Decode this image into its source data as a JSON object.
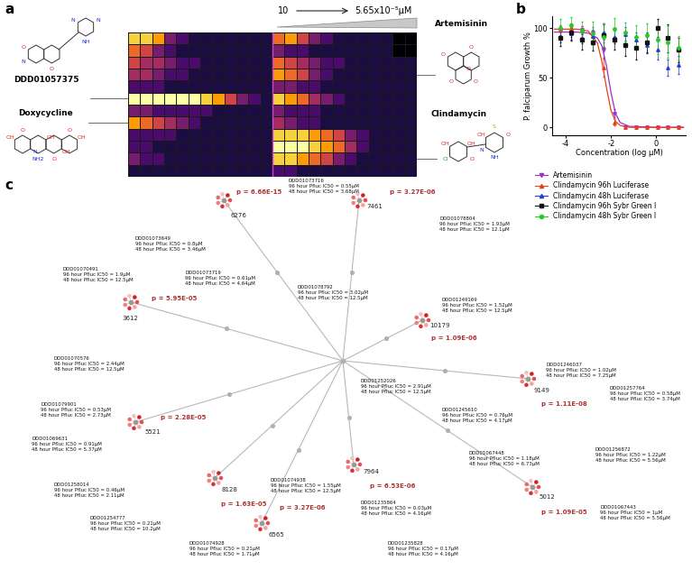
{
  "panel_a": {
    "label": "a",
    "concentration_start": "10",
    "concentration_end": "5.65x10⁻⁵μM",
    "cells": [
      [
        8,
        8,
        7,
        3,
        2,
        1,
        1,
        1,
        1,
        1,
        1,
        1,
        6,
        7,
        5,
        3,
        2,
        1,
        1,
        1,
        1,
        1,
        0,
        0
      ],
      [
        6,
        5,
        3,
        2,
        1,
        1,
        1,
        1,
        1,
        1,
        1,
        1,
        3,
        2,
        2,
        1,
        1,
        1,
        1,
        1,
        1,
        1,
        0,
        0
      ],
      [
        5,
        4,
        4,
        3,
        2,
        2,
        1,
        1,
        1,
        1,
        1,
        1,
        6,
        5,
        4,
        3,
        2,
        2,
        1,
        1,
        1,
        1,
        1,
        1
      ],
      [
        4,
        4,
        3,
        2,
        2,
        1,
        1,
        1,
        1,
        1,
        1,
        1,
        7,
        6,
        5,
        3,
        2,
        1,
        1,
        1,
        1,
        1,
        1,
        1
      ],
      [
        2,
        2,
        2,
        1,
        1,
        1,
        1,
        1,
        1,
        1,
        1,
        1,
        3,
        3,
        2,
        2,
        1,
        1,
        1,
        1,
        1,
        1,
        1,
        1
      ],
      [
        9,
        9,
        9,
        9,
        9,
        9,
        8,
        7,
        5,
        3,
        2,
        1,
        8,
        7,
        6,
        4,
        3,
        2,
        1,
        1,
        1,
        1,
        1,
        1
      ],
      [
        3,
        3,
        2,
        2,
        2,
        2,
        2,
        1,
        1,
        1,
        1,
        1,
        3,
        2,
        2,
        2,
        1,
        1,
        1,
        1,
        1,
        1,
        1,
        1
      ],
      [
        7,
        6,
        5,
        4,
        3,
        2,
        1,
        1,
        1,
        1,
        1,
        1,
        4,
        3,
        2,
        2,
        1,
        1,
        1,
        1,
        1,
        1,
        1,
        1
      ],
      [
        2,
        2,
        2,
        2,
        1,
        1,
        1,
        1,
        1,
        1,
        1,
        1,
        8,
        8,
        8,
        7,
        6,
        5,
        3,
        2,
        1,
        1,
        1,
        1
      ],
      [
        2,
        2,
        1,
        1,
        1,
        1,
        1,
        1,
        1,
        1,
        1,
        1,
        9,
        9,
        9,
        8,
        7,
        6,
        4,
        2,
        1,
        1,
        1,
        1
      ],
      [
        3,
        2,
        2,
        1,
        1,
        1,
        1,
        1,
        1,
        1,
        1,
        1,
        8,
        8,
        7,
        6,
        5,
        3,
        2,
        1,
        1,
        1,
        1,
        1
      ],
      [
        1,
        1,
        1,
        1,
        1,
        1,
        1,
        1,
        1,
        1,
        1,
        1,
        2,
        2,
        1,
        1,
        1,
        1,
        1,
        1,
        1,
        1,
        1,
        1
      ]
    ],
    "structures": [
      {
        "name": "DDD01057375",
        "row": 5,
        "atoms": [
          "N",
          "N",
          "NH",
          "O",
          "N",
          "O"
        ]
      },
      {
        "name": "Doxycycline",
        "row": 7,
        "atoms": [
          "OH",
          "O",
          "OH",
          "O",
          "OH",
          "OH",
          "O",
          "NH2",
          "N"
        ]
      },
      {
        "name": "Artemisinin",
        "row": 3,
        "atoms": [
          "O",
          "O",
          "O",
          "O",
          "O"
        ]
      },
      {
        "name": "Clindamycin",
        "row": 10,
        "atoms": [
          "OH",
          "OH",
          "OH",
          "S",
          "O",
          "N",
          "NH",
          "O",
          "Cl"
        ]
      }
    ]
  },
  "chart_data": {
    "type": "scatter",
    "label": "b",
    "xlabel": "Concentration (log μM)",
    "ylabel": "P. falciparum Growth %",
    "xlim": [
      -4.6,
      1.3
    ],
    "xticks": [
      -4,
      -2,
      0
    ],
    "ylim": [
      -8,
      112
    ],
    "yticks": [
      0,
      50,
      100
    ],
    "legend": "upper left",
    "x": [
      -4.25,
      -3.77,
      -3.29,
      -2.82,
      -2.34,
      -1.86,
      -1.39,
      -0.91,
      -0.43,
      0.05,
      0.52,
      1.0
    ],
    "series": [
      {
        "name": "Artemisinin",
        "color": "#9b30c8",
        "marker": "triangle_down",
        "values": [
          97,
          96,
          98,
          96,
          78,
          14,
          0,
          0,
          0,
          0,
          0,
          0
        ],
        "errors": [
          6,
          5,
          4,
          5,
          8,
          4,
          1,
          1,
          1,
          1,
          1,
          1
        ],
        "fit": {
          "x": [
            -4.5,
            -3.5,
            -3.0,
            -2.6,
            -2.4,
            -2.2,
            -2.0,
            -1.8,
            -1.6,
            -1.2,
            0,
            1.2
          ],
          "values": [
            96,
            96,
            95,
            90,
            82,
            62,
            35,
            14,
            5,
            1,
            0,
            0
          ]
        }
      },
      {
        "name": "Clindamycin 96h Luciferase",
        "color": "#e8401c",
        "marker": "triangle_up",
        "values": [
          99,
          100,
          98,
          92,
          60,
          5,
          0,
          0,
          0,
          0,
          0,
          0
        ],
        "errors": [
          3,
          3,
          4,
          5,
          9,
          3,
          1,
          1,
          1,
          1,
          1,
          1
        ],
        "fit": {
          "x": [
            -4.5,
            -3.5,
            -3.0,
            -2.6,
            -2.4,
            -2.2,
            -2.0,
            -1.8,
            -1.6,
            -1.2,
            0,
            1.2
          ],
          "values": [
            99,
            99,
            97,
            85,
            66,
            40,
            17,
            6,
            2,
            0,
            0,
            0
          ]
        }
      },
      {
        "name": "Clindamycin 48h Luciferase",
        "color": "#1f3fd6",
        "marker": "triangle_up",
        "values": [
          92,
          95,
          90,
          92,
          96,
          91,
          94,
          88,
          83,
          78,
          60,
          63
        ],
        "errors": [
          6,
          7,
          5,
          6,
          8,
          6,
          7,
          8,
          8,
          10,
          8,
          9
        ]
      },
      {
        "name": "Clindamycin 96h Sybr Green I",
        "color": "#111111",
        "marker": "square",
        "values": [
          90,
          96,
          88,
          86,
          93,
          88,
          83,
          80,
          86,
          100,
          90,
          78
        ],
        "errors": [
          8,
          9,
          10,
          9,
          12,
          10,
          11,
          12,
          10,
          9,
          14,
          12
        ]
      },
      {
        "name": "Clindamycin 48h Sybr Green I",
        "color": "#22cc22",
        "marker": "circle",
        "values": [
          100,
          103,
          97,
          95,
          91,
          99,
          96,
          91,
          93,
          88,
          86,
          80
        ],
        "errors": [
          9,
          8,
          10,
          12,
          14,
          11,
          10,
          12,
          12,
          14,
          16,
          12
        ]
      }
    ]
  },
  "panel_c": {
    "label": "c",
    "clusters": [
      {
        "id": "6276",
        "p": "p = 6.66E-15"
      },
      {
        "id": "7461",
        "p": "p = 3.27E-06"
      },
      {
        "id": "3612",
        "p": "p = 5.95E-05"
      },
      {
        "id": "10179",
        "p": "p = 1.09E-06"
      },
      {
        "id": "9149",
        "p": "p = 1.11E-08"
      },
      {
        "id": "5521",
        "p": "p = 2.28E-05"
      },
      {
        "id": "5012",
        "p": "p = 1.09E-05"
      },
      {
        "id": "8128",
        "p": "p = 1.63E-05"
      },
      {
        "id": "7964",
        "p": "p = 6.53E-06"
      },
      {
        "id": "6565",
        "p": "p = 3.27E-06"
      }
    ],
    "compounds": [
      {
        "id": "DDD01073716",
        "ic50_96h": "96 hour Pfluc IC50 = 0.55μM",
        "ic50_48h": "48 hour Pfluc IC50 = 3.68μM"
      },
      {
        "id": "DDD01078804",
        "ic50_96h": "96 hour Pfluc IC50 = 1.93μM",
        "ic50_48h": "48 hour Pfluc IC50 = 12.1μM"
      },
      {
        "id": "DDD01073649",
        "ic50_96h": "96 hour Pfluc IC50 = 0.8μM",
        "ic50_48h": "48 hour Pfluc IC50 = 3.46μM"
      },
      {
        "id": "DDD01070491",
        "ic50_96h": "96 hour Pfluc IC50 = 1.9μM",
        "ic50_48h": "48 hour Pfluc IC50 = 12.5μM"
      },
      {
        "id": "DDD01073719",
        "ic50_96h": "96 hour Pfluc IC50 = 0.61μM",
        "ic50_48h": "48 hour Pfluc IC50 = 4.64μM"
      },
      {
        "id": "DDD01078792",
        "ic50_96h": "96 hour Pfluc IC50 = 3.02μM",
        "ic50_48h": "48 hour Pfluc IC50 = 12.5μM"
      },
      {
        "id": "DDD01249169",
        "ic50_96h": "96 hour Pfluc IC50 = 1.52μM",
        "ic50_48h": "48 hour Pfluc IC50 = 12.5μM"
      },
      {
        "id": "DDD01246037",
        "ic50_96h": "96 hour Pfluc IC50 = 1.02μM",
        "ic50_48h": "48 hour Pfluc IC50 = 7.25μM"
      },
      {
        "id": "DDD01257764",
        "ic50_96h": "96 hour Pfluc IC50 = 0.58μM",
        "ic50_48h": "48 hour Pfluc IC50 = 3.74μM"
      },
      {
        "id": "DDD01252026",
        "ic50_96h": "96 hour Pfluc IC50 = 2.91μM",
        "ic50_48h": "48 hour Pfluc IC50 = 12.5μM"
      },
      {
        "id": "DDD01070576",
        "ic50_96h": "96 hour Pfluc IC50 = 2.44μM",
        "ic50_48h": "48 hour Pfluc IC50 = 12.5μM"
      },
      {
        "id": "DDD01079901",
        "ic50_96h": "96 hour Pfluc IC50 = 0.53μM",
        "ic50_48h": "48 hour Pfluc IC50 = 2.73μM"
      },
      {
        "id": "DDD01245610",
        "ic50_96h": "96 hour Pfluc IC50 = 0.76μM",
        "ic50_48h": "48 hour Pfluc IC50 = 4.17μM"
      },
      {
        "id": "DDD01256872",
        "ic50_96h": "96 hour Pfluc IC50 = 1.22μM",
        "ic50_48h": "48 hour Pfluc IC50 = 5.56μM"
      },
      {
        "id": "DDD01069631",
        "ic50_96h": "96 hour Pfluc IC50 = 0.91μM",
        "ic50_48h": "48 hour Pfluc IC50 = 5.37μM"
      },
      {
        "id": "DDD01067448",
        "ic50_96h": "96 hour Pfluc IC50 = 1.18μM",
        "ic50_48h": "48 hour Pfluc IC50 = 6.73μM"
      },
      {
        "id": "DDD01067443",
        "ic50_96h": "96 hour Pfluc IC50 = 1μM",
        "ic50_48h": "48 hour Pfluc IC50 = 5.56μM"
      },
      {
        "id": "DDD01258014",
        "ic50_96h": "96 hour Pfluc IC50 = 0.46μM",
        "ic50_48h": "48 hour Pfluc IC50 = 2.11μM"
      },
      {
        "id": "DDD01074938",
        "ic50_96h": "96 hour Pfluc IC50 = 1.55μM",
        "ic50_48h": "48 hour Pfluc IC50 = 12.5μM"
      },
      {
        "id": "DDD01235864",
        "ic50_96h": "96 hour Pfluc IC50 = 0.03μM",
        "ic50_48h": "48 hour Pfluc IC50 = 4.16μM"
      },
      {
        "id": "DDD01254777",
        "ic50_96h": "96 hour Pfluc IC50 = 0.21μM",
        "ic50_48h": "48 hour Pfluc IC50 = 10.2μM"
      },
      {
        "id": "DDD01074928",
        "ic50_96h": "96 hour Pfluc IC50 = 0.21μM",
        "ic50_48h": "48 hour Pfluc IC50 = 1.71μM"
      },
      {
        "id": "DDD01235828",
        "ic50_96h": "96 hour Pfluc IC50 = 0.17μM",
        "ic50_48h": "48 hour Pfluc IC50 = 4.16μM"
      }
    ]
  }
}
